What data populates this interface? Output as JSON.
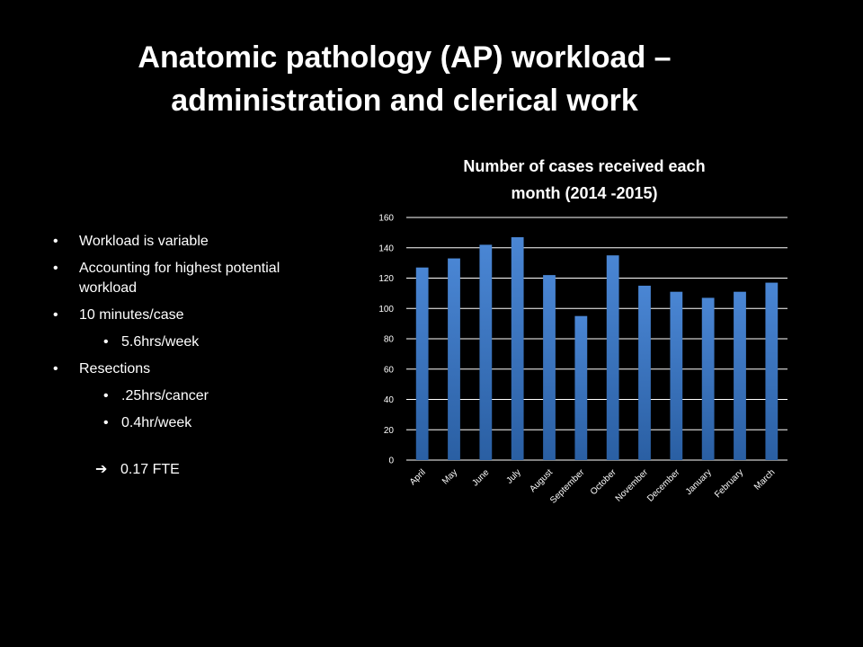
{
  "slide": {
    "title_line1": "Anatomic pathology (AP) workload –",
    "title_line2": "administration and clerical work"
  },
  "bullets": [
    {
      "text": "Workload is variable",
      "level": 1
    },
    {
      "text": "Accounting for highest potential workload",
      "level": 1
    },
    {
      "text": "10 minutes/case",
      "level": 1
    },
    {
      "text": "5.6hrs/week",
      "level": 2
    },
    {
      "text": "Resections",
      "level": 1
    },
    {
      "text": ".25hrs/cancer",
      "level": 2
    },
    {
      "text": "0.4hr/week",
      "level": 2
    }
  ],
  "conclusion": {
    "icon": "right-arrow-icon",
    "text": "0.17 FTE"
  },
  "chart_data": {
    "type": "bar",
    "title": "Number of cases received each month (2014 -2015)",
    "title_line1": "Number of cases received each",
    "title_line2": "month (2014 -2015)",
    "xlabel": "",
    "ylabel": "",
    "categories": [
      "April",
      "May",
      "June",
      "July",
      "August",
      "September",
      "October",
      "November",
      "December",
      "January",
      "February",
      "March"
    ],
    "values": [
      127,
      133,
      142,
      147,
      122,
      95,
      135,
      115,
      111,
      107,
      111,
      117
    ],
    "ylim": [
      0,
      160
    ],
    "yticks": [
      0,
      20,
      40,
      60,
      80,
      100,
      120,
      140,
      160
    ],
    "grid": true,
    "legend": "none",
    "colors": {
      "bar_top": "#4a86d4",
      "bar_bottom": "#2a5fa3",
      "grid": "#ffffff"
    }
  }
}
